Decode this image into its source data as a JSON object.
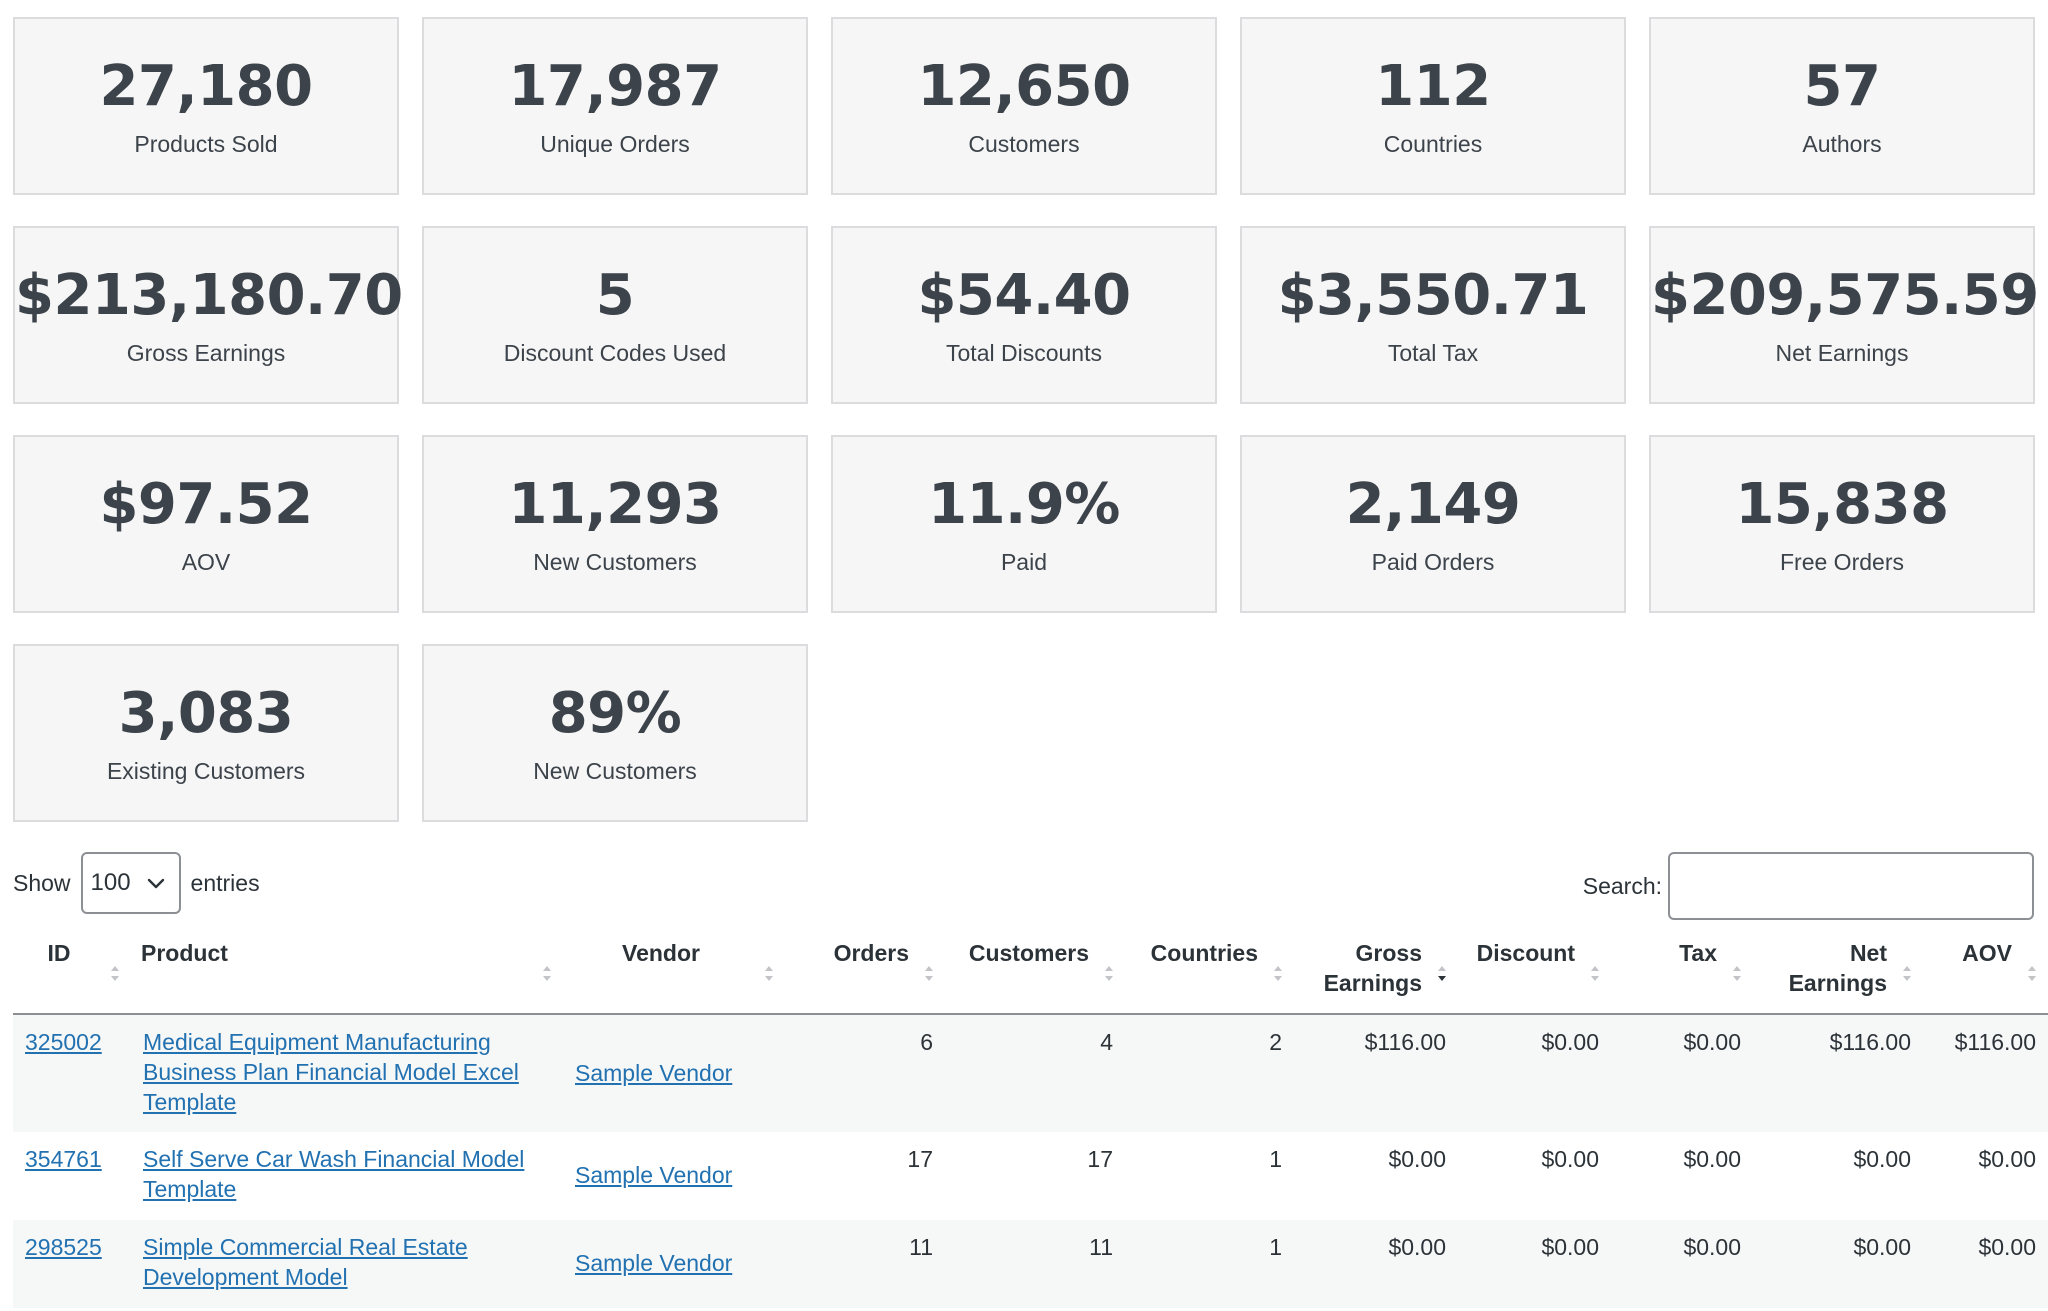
{
  "cards": [
    {
      "value": "27,180",
      "label": "Products Sold"
    },
    {
      "value": "17,987",
      "label": "Unique Orders"
    },
    {
      "value": "12,650",
      "label": "Customers"
    },
    {
      "value": "112",
      "label": "Countries"
    },
    {
      "value": "57",
      "label": "Authors"
    },
    {
      "value": "$213,180.70",
      "label": "Gross Earnings"
    },
    {
      "value": "5",
      "label": "Discount Codes Used"
    },
    {
      "value": "$54.40",
      "label": "Total Discounts"
    },
    {
      "value": "$3,550.71",
      "label": "Total Tax"
    },
    {
      "value": "$209,575.59",
      "label": "Net Earnings"
    },
    {
      "value": "$97.52",
      "label": "AOV"
    },
    {
      "value": "11,293",
      "label": "New Customers"
    },
    {
      "value": "11.9%",
      "label": "Paid"
    },
    {
      "value": "2,149",
      "label": "Paid Orders"
    },
    {
      "value": "15,838",
      "label": "Free Orders"
    },
    {
      "value": "3,083",
      "label": "Existing Customers"
    },
    {
      "value": "89%",
      "label": "New Customers"
    }
  ],
  "controls": {
    "show_label": "Show",
    "entries_value": "100",
    "entries_label": "entries",
    "search_label": "Search:",
    "search_value": ""
  },
  "table": {
    "columns": [
      "ID",
      "Product",
      "Vendor",
      "Orders",
      "Customers",
      "Countries",
      "Gross Earnings",
      "Discount",
      "Tax",
      "Net Earnings",
      "AOV"
    ],
    "rows": [
      {
        "id": "325002",
        "product": "Medical Equipment Manufacturing Business Plan Financial Model Excel Template",
        "vendor": "Sample Vendor",
        "orders": "6",
        "customers": "4",
        "countries": "2",
        "gross": "$116.00",
        "discount": "$0.00",
        "tax": "$0.00",
        "net": "$116.00",
        "aov": "$116.00"
      },
      {
        "id": "354761",
        "product": "Self Serve Car Wash Financial Model Template",
        "vendor": "Sample Vendor",
        "orders": "17",
        "customers": "17",
        "countries": "1",
        "gross": "$0.00",
        "discount": "$0.00",
        "tax": "$0.00",
        "net": "$0.00",
        "aov": "$0.00"
      },
      {
        "id": "298525",
        "product": "Simple Commercial Real Estate Development Model",
        "vendor": "Sample Vendor",
        "orders": "11",
        "customers": "11",
        "countries": "1",
        "gross": "$0.00",
        "discount": "$0.00",
        "tax": "$0.00",
        "net": "$0.00",
        "aov": "$0.00"
      }
    ]
  },
  "icons": {
    "select_arrow": "chevron-down-icon",
    "sort": "sort-arrows-icon",
    "sort_active": "sort-desc-icon"
  },
  "colors": {
    "link": "#2271b1",
    "card_bg": "#f6f6f6",
    "card_border": "#dcdcde",
    "text": "#2c3338",
    "stripe": "#f6f7f7"
  }
}
